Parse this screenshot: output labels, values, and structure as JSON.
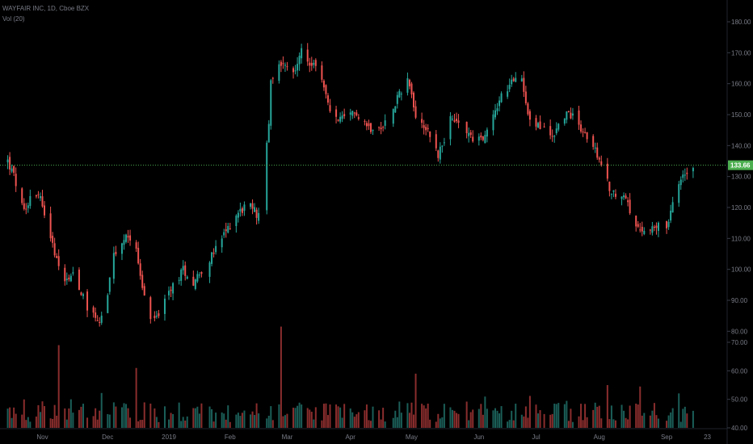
{
  "legend": {
    "symbol_line": "WAYFAIR INC, 1D, Cboe BZX",
    "volume_line": "Vol (20)"
  },
  "colors": {
    "up": "#26a69a",
    "down": "#ef5350",
    "vol_up": "#1b5e58",
    "vol_down": "#8a2d2d",
    "background": "#000000",
    "axis_text": "#787b86",
    "price_line": "#4caf50"
  },
  "chart_data": {
    "type": "candlestick",
    "title": "WAYFAIR INC, 1D, Cboe BZX",
    "x_ticks": [
      {
        "label": "Nov",
        "date": "2018-11-01"
      },
      {
        "label": "Dec",
        "date": "2018-12-03"
      },
      {
        "label": "2019",
        "date": "2019-01-02"
      },
      {
        "label": "Feb",
        "date": "2019-02-01"
      },
      {
        "label": "Mar",
        "date": "2019-03-01"
      },
      {
        "label": "Apr",
        "date": "2019-04-01"
      },
      {
        "label": "May",
        "date": "2019-05-01"
      },
      {
        "label": "Jun",
        "date": "2019-06-03"
      },
      {
        "label": "Jul",
        "date": "2019-07-01"
      },
      {
        "label": "Aug",
        "date": "2019-08-01"
      },
      {
        "label": "Sep",
        "date": "2019-09-03"
      },
      {
        "label": "23",
        "date": "2019-09-23"
      }
    ],
    "price_axis": {
      "min": 75,
      "max": 185,
      "ticks": [
        "180.00",
        "170.00",
        "160.00",
        "150.00",
        "140.00",
        "130.00",
        "120.00",
        "110.00",
        "100.00",
        "90.00",
        "80.00"
      ]
    },
    "volume_axis": {
      "min": 40,
      "max": 85,
      "ticks": [
        "70.00",
        "60.00",
        "50.00",
        "40.00"
      ]
    },
    "last_price": "133.66",
    "series": [
      {
        "name": "Price",
        "close_anchors": [
          [
            "2018-10-15",
            135
          ],
          [
            "2018-10-18",
            130
          ],
          [
            "2018-10-23",
            118
          ],
          [
            "2018-10-26",
            124
          ],
          [
            "2018-10-30",
            125
          ],
          [
            "2018-11-02",
            119
          ],
          [
            "2018-11-06",
            108
          ],
          [
            "2018-11-09",
            100
          ],
          [
            "2018-11-13",
            97
          ],
          [
            "2018-11-16",
            99
          ],
          [
            "2018-11-20",
            93
          ],
          [
            "2018-11-23",
            88
          ],
          [
            "2018-11-27",
            85
          ],
          [
            "2018-11-29",
            83
          ],
          [
            "2018-12-03",
            92
          ],
          [
            "2018-12-06",
            104
          ],
          [
            "2018-12-10",
            108
          ],
          [
            "2018-12-13",
            111
          ],
          [
            "2018-12-17",
            108
          ],
          [
            "2018-12-19",
            97
          ],
          [
            "2018-12-24",
            83
          ],
          [
            "2018-12-27",
            85
          ],
          [
            "2018-12-31",
            89
          ],
          [
            "2019-01-04",
            95
          ],
          [
            "2019-01-09",
            100
          ],
          [
            "2019-01-14",
            96
          ],
          [
            "2019-01-18",
            100
          ],
          [
            "2019-01-23",
            104
          ],
          [
            "2019-01-29",
            111
          ],
          [
            "2019-02-04",
            118
          ],
          [
            "2019-02-08",
            120
          ],
          [
            "2019-02-12",
            120
          ],
          [
            "2019-02-15",
            117
          ],
          [
            "2019-02-19",
            140
          ],
          [
            "2019-02-21",
            160
          ],
          [
            "2019-02-27",
            168
          ],
          [
            "2019-03-04",
            164
          ],
          [
            "2019-03-08",
            170
          ],
          [
            "2019-03-13",
            166
          ],
          [
            "2019-03-18",
            162
          ],
          [
            "2019-03-22",
            150
          ],
          [
            "2019-03-29",
            148
          ],
          [
            "2019-04-04",
            151
          ],
          [
            "2019-04-10",
            146
          ],
          [
            "2019-04-16",
            145
          ],
          [
            "2019-04-22",
            153
          ],
          [
            "2019-04-29",
            162
          ],
          [
            "2019-05-03",
            150
          ],
          [
            "2019-05-09",
            145
          ],
          [
            "2019-05-14",
            137
          ],
          [
            "2019-05-20",
            148
          ],
          [
            "2019-05-24",
            147
          ],
          [
            "2019-05-30",
            143
          ],
          [
            "2019-06-05",
            142
          ],
          [
            "2019-06-10",
            150
          ],
          [
            "2019-06-14",
            156
          ],
          [
            "2019-06-19",
            160
          ],
          [
            "2019-06-24",
            162
          ],
          [
            "2019-06-28",
            148
          ],
          [
            "2019-07-03",
            146
          ],
          [
            "2019-07-09",
            143
          ],
          [
            "2019-07-15",
            150
          ],
          [
            "2019-07-19",
            150
          ],
          [
            "2019-07-24",
            145
          ],
          [
            "2019-07-30",
            138
          ],
          [
            "2019-08-05",
            128
          ],
          [
            "2019-08-09",
            123
          ],
          [
            "2019-08-14",
            124
          ],
          [
            "2019-08-19",
            113
          ],
          [
            "2019-08-23",
            111
          ],
          [
            "2019-08-28",
            115
          ],
          [
            "2019-09-03",
            112
          ],
          [
            "2019-09-06",
            121
          ],
          [
            "2019-09-11",
            130
          ],
          [
            "2019-09-16",
            133.66
          ]
        ]
      },
      {
        "name": "Vol (20)",
        "spike_days": [
          [
            "2018-11-09",
            69
          ],
          [
            "2018-12-17",
            61
          ],
          [
            "2019-02-26",
            75.5
          ],
          [
            "2019-05-03",
            59
          ],
          [
            "2019-08-05",
            55
          ],
          [
            "2019-08-21",
            54.5
          ]
        ]
      }
    ]
  }
}
